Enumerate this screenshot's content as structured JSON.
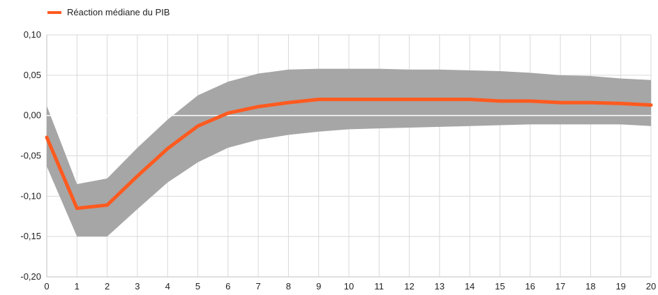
{
  "chart_data": {
    "type": "line",
    "title": "",
    "xlabel": "",
    "ylabel": "",
    "x": [
      0,
      1,
      2,
      3,
      4,
      5,
      6,
      7,
      8,
      9,
      10,
      11,
      12,
      13,
      14,
      15,
      16,
      17,
      18,
      19,
      20
    ],
    "xlim": [
      0,
      20
    ],
    "ylim": [
      -0.2,
      0.1
    ],
    "y_ticks": [
      0.1,
      0.05,
      0.0,
      -0.05,
      -0.1,
      -0.15,
      -0.2
    ],
    "y_tick_labels": [
      "0,10",
      "0,05",
      "0,00",
      "-0,05",
      "-0,10",
      "-0,15",
      "-0,20"
    ],
    "x_tick_labels": [
      "0",
      "1",
      "2",
      "3",
      "4",
      "5",
      "6",
      "7",
      "8",
      "9",
      "10",
      "11",
      "12",
      "13",
      "14",
      "15",
      "16",
      "17",
      "18",
      "19",
      "20"
    ],
    "grid": true,
    "legend_position": "top-left",
    "series": [
      {
        "name": "Réaction médiane du PIB",
        "color": "#ff5a1f",
        "values": [
          -0.027,
          -0.115,
          -0.111,
          -0.075,
          -0.041,
          -0.013,
          0.003,
          0.011,
          0.016,
          0.02,
          0.02,
          0.02,
          0.02,
          0.02,
          0.02,
          0.018,
          0.018,
          0.016,
          0.016,
          0.015,
          0.013
        ]
      }
    ],
    "band": {
      "color": "#a6a6a6",
      "upper": [
        0.012,
        -0.085,
        -0.078,
        -0.04,
        -0.005,
        0.025,
        0.042,
        0.052,
        0.057,
        0.058,
        0.058,
        0.058,
        0.057,
        0.057,
        0.056,
        0.055,
        0.053,
        0.05,
        0.049,
        0.046,
        0.044
      ],
      "lower": [
        -0.063,
        -0.15,
        -0.15,
        -0.116,
        -0.083,
        -0.058,
        -0.04,
        -0.03,
        -0.024,
        -0.02,
        -0.017,
        -0.016,
        -0.015,
        -0.014,
        -0.013,
        -0.012,
        -0.011,
        -0.011,
        -0.011,
        -0.011,
        -0.013
      ]
    }
  }
}
